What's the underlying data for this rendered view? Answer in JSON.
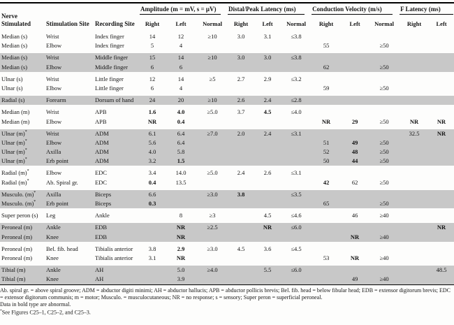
{
  "table": {
    "left_headers": [
      "Nerve Stimulated",
      "Stimulation Site",
      "Recording Site"
    ],
    "groups": [
      {
        "label": "Amplitude (m = mV, s = μV)",
        "cols": [
          "Right",
          "Left",
          "Normal"
        ]
      },
      {
        "label": "Distal/Peak Latency (ms)",
        "cols": [
          "Right",
          "Left",
          "Normal"
        ]
      },
      {
        "label": "Conduction Velocity (m/s)",
        "cols": [
          "Right",
          "Left",
          "Normal"
        ]
      },
      {
        "label": "F Latency (ms)",
        "cols": [
          "Right",
          "Left"
        ]
      }
    ],
    "rows": [
      {
        "n": "Median (s)",
        "s": "Wrist",
        "r": "Index finger",
        "c": [
          "14",
          "12",
          "≥10",
          "3.0",
          "3.1",
          "≤3.8",
          "",
          "",
          "",
          "",
          ""
        ],
        "b": [],
        "sh": false,
        "gs": true
      },
      {
        "n": "Median (s)",
        "s": "Elbow",
        "r": "Index finger",
        "c": [
          "5",
          "4",
          "",
          "",
          "",
          "",
          "55",
          "",
          "≥50",
          "",
          ""
        ],
        "b": [],
        "sh": false,
        "gs": false
      },
      {
        "n": "Median (s)",
        "s": "Wrist",
        "r": "Middle finger",
        "c": [
          "15",
          "14",
          "≥10",
          "3.0",
          "3.0",
          "≤3.8",
          "",
          "",
          "",
          "",
          ""
        ],
        "b": [],
        "sh": true,
        "gs": true
      },
      {
        "n": "Median (s)",
        "s": "Elbow",
        "r": "Middle finger",
        "c": [
          "6",
          "6",
          "",
          "",
          "",
          "",
          "62",
          "",
          "≥50",
          "",
          ""
        ],
        "b": [],
        "sh": true,
        "gs": false
      },
      {
        "n": "Ulnar (s)",
        "s": "Wrist",
        "r": "Little finger",
        "c": [
          "12",
          "14",
          "≥5",
          "2.7",
          "2.9",
          "≤3.2",
          "",
          "",
          "",
          "",
          ""
        ],
        "b": [],
        "sh": false,
        "gs": true
      },
      {
        "n": "Ulnar (s)",
        "s": "Elbow",
        "r": "Little finger",
        "c": [
          "6",
          "4",
          "",
          "",
          "",
          "",
          "59",
          "",
          "≥50",
          "",
          ""
        ],
        "b": [],
        "sh": false,
        "gs": false
      },
      {
        "n": "Radial (s)",
        "s": "Forearm",
        "r": "Dorsum of hand",
        "c": [
          "24",
          "20",
          "≥10",
          "2.6",
          "2.4",
          "≤2.8",
          "",
          "",
          "",
          "",
          ""
        ],
        "b": [],
        "sh": true,
        "gs": true
      },
      {
        "n": "Median (m)",
        "s": "Wrist",
        "r": "APB",
        "c": [
          "1.6",
          "4.0",
          "≥5.0",
          "3.7",
          "4.5",
          "≤4.0",
          "",
          "",
          "",
          "",
          ""
        ],
        "b": [
          0,
          1,
          4
        ],
        "sh": false,
        "gs": true
      },
      {
        "n": "Median (m)",
        "s": "Elbow",
        "r": "APB",
        "c": [
          "NR",
          "0.4",
          "",
          "",
          "",
          "",
          "NR",
          "29",
          "≥50",
          "NR",
          "NR"
        ],
        "b": [
          0,
          1,
          6,
          7,
          9,
          10
        ],
        "sh": false,
        "gs": false
      },
      {
        "n": "Ulnar (m)*",
        "s": "Wrist",
        "r": "ADM",
        "c": [
          "6.1",
          "6.4",
          "≥7.0",
          "2.0",
          "2.4",
          "≤3.1",
          "",
          "",
          "",
          "32.5",
          "NR"
        ],
        "b": [
          10
        ],
        "sh": true,
        "gs": true
      },
      {
        "n": "Ulnar (m)*",
        "s": "Elbow",
        "r": "ADM",
        "c": [
          "5.6",
          "6.4",
          "",
          "",
          "",
          "",
          "51",
          "49",
          "≥50",
          "",
          ""
        ],
        "b": [
          7
        ],
        "sh": true,
        "gs": false
      },
      {
        "n": "Ulnar (m)*",
        "s": "Axilla",
        "r": "ADM",
        "c": [
          "4.0",
          "5.8",
          "",
          "",
          "",
          "",
          "52",
          "48",
          "≥50",
          "",
          ""
        ],
        "b": [
          7
        ],
        "sh": true,
        "gs": false
      },
      {
        "n": "Ulnar (m)*",
        "s": "Erb point",
        "r": "ADM",
        "c": [
          "3.2",
          "1.5",
          "",
          "",
          "",
          "",
          "50",
          "44",
          "≥50",
          "",
          ""
        ],
        "b": [
          1,
          7
        ],
        "sh": true,
        "gs": false
      },
      {
        "n": "Radial (m)*",
        "s": "Elbow",
        "r": "EDC",
        "c": [
          "3.4",
          "14.0",
          "≥5.0",
          "2.4",
          "2.6",
          "≤3.1",
          "",
          "",
          "",
          "",
          ""
        ],
        "b": [],
        "sh": false,
        "gs": true
      },
      {
        "n": "Radial (m)*",
        "s": "Ab. Spiral gr.",
        "r": "EDC",
        "c": [
          "0.4",
          "13.5",
          "",
          "",
          "",
          "",
          "42",
          "62",
          "≥50",
          "",
          ""
        ],
        "b": [
          0,
          6
        ],
        "sh": false,
        "gs": false
      },
      {
        "n": "Musculo. (m)*",
        "s": "Axilla",
        "r": "Biceps",
        "c": [
          "6.6",
          "",
          "≥3.0",
          "3.8",
          "",
          "≤3.5",
          "",
          "",
          "",
          "",
          ""
        ],
        "b": [
          3
        ],
        "sh": true,
        "gs": true
      },
      {
        "n": "Musculo. (m)*",
        "s": "Erb point",
        "r": "Biceps",
        "c": [
          "0.3",
          "",
          "",
          "",
          "",
          "",
          "65",
          "",
          "≥50",
          "",
          ""
        ],
        "b": [
          0
        ],
        "sh": true,
        "gs": false
      },
      {
        "n": "Super peron (s)",
        "s": "Leg",
        "r": "Ankle",
        "c": [
          "",
          "8",
          "≥3",
          "",
          "4.5",
          "≤4.6",
          "",
          "46",
          "≥40",
          "",
          ""
        ],
        "b": [],
        "sh": false,
        "gs": true
      },
      {
        "n": "Peroneal (m)",
        "s": "Ankle",
        "r": "EDB",
        "c": [
          "",
          "NR",
          "≥2.5",
          "",
          "NR",
          "≤6.0",
          "",
          "",
          "",
          "",
          "NR"
        ],
        "b": [
          1,
          4,
          10
        ],
        "sh": true,
        "gs": true
      },
      {
        "n": "Peroneal (m)",
        "s": "Knee",
        "r": "EDB",
        "c": [
          "",
          "NR",
          "",
          "",
          "",
          "",
          "",
          "NR",
          "≥40",
          "",
          ""
        ],
        "b": [
          1,
          7
        ],
        "sh": true,
        "gs": false
      },
      {
        "n": "Peroneal (m)",
        "s": "Bel. fib. head",
        "r": "Tibialis anterior",
        "c": [
          "3.8",
          "2.9",
          "≥3.0",
          "4.5",
          "3.6",
          "≤4.5",
          "",
          "",
          "",
          "",
          ""
        ],
        "b": [
          1
        ],
        "sh": false,
        "gs": true
      },
      {
        "n": "Peroneal (m)",
        "s": "Knee",
        "r": "Tibialis anterior",
        "c": [
          "3.1",
          "NR",
          "",
          "",
          "",
          "",
          "53",
          "NR",
          "≥40",
          "",
          ""
        ],
        "b": [
          1,
          7
        ],
        "sh": false,
        "gs": false
      },
      {
        "n": "Tibial (m)",
        "s": "Ankle",
        "r": "AH",
        "c": [
          "",
          "5.0",
          "≥4.0",
          "",
          "5.5",
          "≤6.0",
          "",
          "",
          "",
          "",
          "48.5"
        ],
        "b": [],
        "sh": true,
        "gs": true
      },
      {
        "n": "Tibial (m)",
        "s": "Knee",
        "r": "AH",
        "c": [
          "",
          "3.9",
          "",
          "",
          "",
          "",
          "",
          "49",
          "≥40",
          "",
          ""
        ],
        "b": [],
        "sh": true,
        "gs": false
      }
    ]
  },
  "footnotes": {
    "abbreviations": "Ab. spiral gr. = above spiral groove; ADM = abductor digiti minimi; AH = abductor hallucis; APB = abductor pollicis brevis; Bel. fib. head = below fibular head; EDB = extensor digitorum brevis; EDC = extensor digitorum communis; m = motor; Musculo. = musculocutaneous; NR = no response; s = sensory; Super peron = superficial peroneal.",
    "bold_note": "Data in bold type are abnormal.",
    "see_marker": "*",
    "see_note": "See Figures C25–1, C25–2, and C25–3."
  }
}
